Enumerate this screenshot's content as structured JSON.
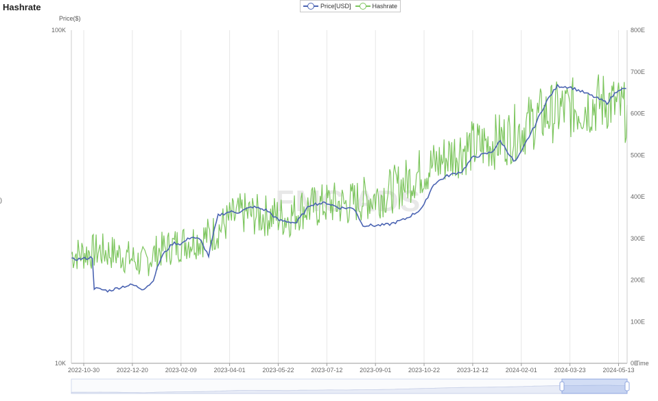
{
  "title": "Hashrate",
  "left_margin_text": ")",
  "legend": [
    {
      "name": "Price[USD]",
      "color": "#4a63b2"
    },
    {
      "name": "Hashrate",
      "color": "#7cc55d"
    }
  ],
  "watermark": "FMC ADS",
  "chart_data": {
    "type": "line",
    "title": "Hashrate",
    "xlabel": "Time",
    "ylabel_left": "Price($)",
    "ylabel_right": "",
    "y_left_scale": "log",
    "y_left_range": [
      10000,
      100000
    ],
    "y_left_ticks": [
      "10K",
      "100K"
    ],
    "y_right_range": [
      0,
      800
    ],
    "y_right_ticks": [
      "0E",
      "100E",
      "200E",
      "300E",
      "400E",
      "500E",
      "600E",
      "700E",
      "800E"
    ],
    "x_range": [
      "2022-10-17",
      "2024-05-22"
    ],
    "x_ticks": [
      "2022-10-30",
      "2022-12-20",
      "2023-02-09",
      "2023-04-01",
      "2023-05-22",
      "2023-07-12",
      "2023-09-01",
      "2023-10-22",
      "2023-12-12",
      "2024-02-01",
      "2024-03-23",
      "2024-05-13"
    ],
    "grid": "vertical",
    "legend_position": "top-center",
    "data_zoom": true,
    "series": [
      {
        "name": "Price[USD]",
        "axis": "left",
        "color": "#4a63b2",
        "x": [
          "2022-10-17",
          "2022-10-30",
          "2022-11-08",
          "2022-11-10",
          "2022-11-25",
          "2022-12-10",
          "2022-12-20",
          "2022-12-31",
          "2023-01-10",
          "2023-01-20",
          "2023-02-01",
          "2023-02-09",
          "2023-02-20",
          "2023-03-01",
          "2023-03-10",
          "2023-03-20",
          "2023-04-01",
          "2023-04-10",
          "2023-04-25",
          "2023-05-10",
          "2023-05-22",
          "2023-06-10",
          "2023-06-25",
          "2023-07-12",
          "2023-07-25",
          "2023-08-10",
          "2023-08-18",
          "2023-09-01",
          "2023-09-15",
          "2023-10-01",
          "2023-10-15",
          "2023-10-22",
          "2023-11-01",
          "2023-11-15",
          "2023-12-01",
          "2023-12-12",
          "2024-01-01",
          "2024-01-10",
          "2024-01-25",
          "2024-02-01",
          "2024-02-15",
          "2024-02-28",
          "2024-03-10",
          "2024-03-23",
          "2024-04-01",
          "2024-04-15",
          "2024-05-01",
          "2024-05-13",
          "2024-05-22"
        ],
        "values": [
          20500,
          20600,
          20800,
          16800,
          16500,
          17000,
          17200,
          16700,
          17500,
          21000,
          23000,
          22800,
          24000,
          23500,
          21000,
          27800,
          28500,
          28400,
          29500,
          28800,
          26900,
          26400,
          30000,
          30300,
          29300,
          29200,
          26000,
          25900,
          26100,
          27000,
          28500,
          29800,
          34500,
          36500,
          37700,
          41500,
          43000,
          46500,
          40000,
          43000,
          51500,
          61500,
          68000,
          67500,
          66000,
          63500,
          60500,
          66500,
          66500
        ]
      },
      {
        "name": "Hashrate",
        "axis": "right",
        "color": "#7cc55d",
        "x": [
          "2022-10-17",
          "2022-11-01",
          "2022-11-15",
          "2022-12-01",
          "2022-12-15",
          "2023-01-01",
          "2023-01-15",
          "2023-02-01",
          "2023-02-15",
          "2023-03-01",
          "2023-03-15",
          "2023-04-01",
          "2023-04-15",
          "2023-05-01",
          "2023-05-15",
          "2023-06-01",
          "2023-06-15",
          "2023-07-01",
          "2023-07-15",
          "2023-08-01",
          "2023-08-15",
          "2023-09-01",
          "2023-09-15",
          "2023-10-01",
          "2023-10-15",
          "2023-11-01",
          "2023-11-15",
          "2023-12-01",
          "2023-12-15",
          "2024-01-01",
          "2024-01-15",
          "2024-02-01",
          "2024-02-15",
          "2024-03-01",
          "2024-03-15",
          "2024-04-01",
          "2024-04-15",
          "2024-05-01",
          "2024-05-22"
        ],
        "values": [
          262,
          265,
          270,
          265,
          255,
          240,
          268,
          282,
          292,
          298,
          312,
          345,
          360,
          355,
          355,
          350,
          372,
          375,
          385,
          380,
          392,
          400,
          412,
          432,
          455,
          475,
          495,
          515,
          520,
          530,
          540,
          562,
          585,
          600,
          608,
          615,
          620,
          630,
          600
        ]
      }
    ]
  }
}
